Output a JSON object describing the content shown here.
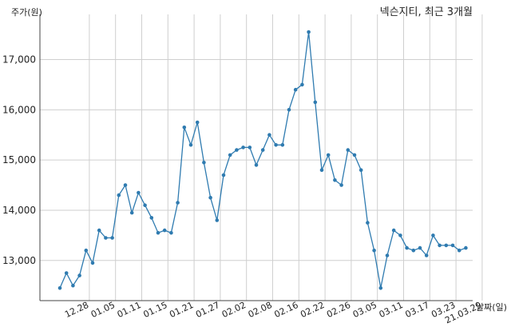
{
  "chart_data": {
    "type": "line",
    "title": "넥슨지티, 최근 3개월",
    "ylabel": "주가(원)",
    "xlabel": "날짜(일)",
    "ylim": [
      12200,
      17900
    ],
    "y_ticks": [
      13000,
      14000,
      15000,
      16000,
      17000
    ],
    "y_tick_labels": [
      "13,000",
      "14,000",
      "15,000",
      "16,000",
      "17,000"
    ],
    "grid": true,
    "colors": {
      "line": "#2f7bb0",
      "grid": "#cfcfcf",
      "axis": "#444444"
    },
    "x_tick_labels": [
      {
        "index": 4,
        "label": "12.28"
      },
      {
        "index": 8,
        "label": "01.05"
      },
      {
        "index": 12,
        "label": "01.11"
      },
      {
        "index": 16,
        "label": "01.15"
      },
      {
        "index": 20,
        "label": "01.21"
      },
      {
        "index": 24,
        "label": "01.27"
      },
      {
        "index": 28,
        "label": "02.02"
      },
      {
        "index": 32,
        "label": "02.08"
      },
      {
        "index": 36,
        "label": "02.16"
      },
      {
        "index": 40,
        "label": "02.22"
      },
      {
        "index": 44,
        "label": "02.26"
      },
      {
        "index": 48,
        "label": "03.05"
      },
      {
        "index": 52,
        "label": "03.11"
      },
      {
        "index": 56,
        "label": "03.17"
      },
      {
        "index": 60,
        "label": "03.23"
      },
      {
        "index": 64,
        "label": "21.03.29"
      }
    ],
    "series": [
      {
        "values": [
          12450,
          12750,
          12500,
          12700,
          13200,
          12950,
          13600,
          13450,
          13450,
          14300,
          14500,
          13950,
          14350,
          14100,
          13850,
          13550,
          13600,
          13550,
          14150,
          15650,
          15300,
          15750,
          14950,
          14250,
          13800,
          14700,
          15100,
          15200,
          15250,
          15250,
          14900,
          15200,
          15500,
          15300,
          15300,
          16000,
          16400,
          16500,
          17550,
          16150,
          14800,
          15100,
          14600,
          14500,
          15200,
          15100,
          14800,
          13750,
          13200,
          12450,
          13100,
          13600,
          13500,
          13250,
          13200,
          13250,
          13100,
          13500,
          13300,
          13300,
          13300,
          13200,
          13250
        ]
      }
    ]
  }
}
